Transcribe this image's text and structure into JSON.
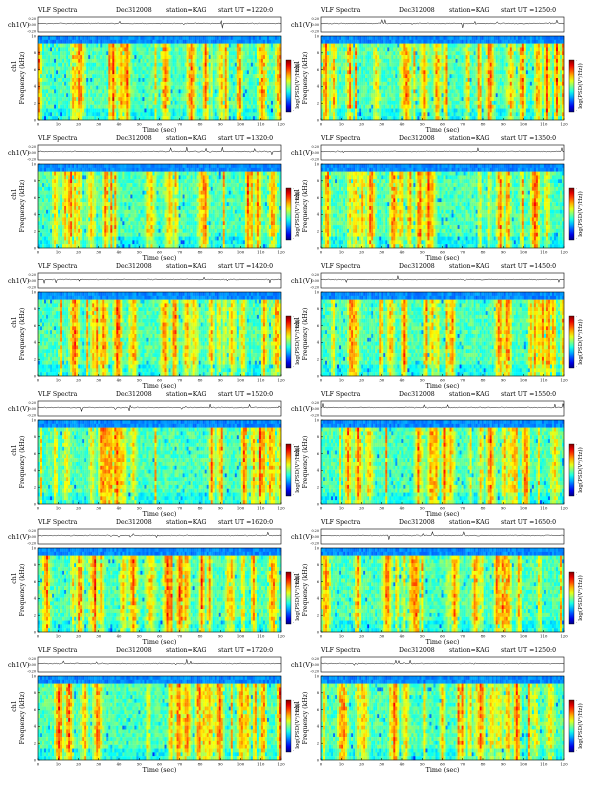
{
  "common": {
    "header_title": "VLF Spectra",
    "date": "Dec312008",
    "station": "station=KAG",
    "start_prefix": "start  UT  =",
    "wave_label": "ch1(V)",
    "wave_ticks": [
      "0.20",
      "0.00",
      "-0.20"
    ],
    "spec_label_line1": "ch1",
    "spec_label_line2": "Frequency  (kHz)",
    "freq_ticks": [
      "0",
      "2",
      "4",
      "6",
      "8",
      "10"
    ],
    "time_ticks": [
      "0",
      "10",
      "20",
      "30",
      "40",
      "50",
      "60",
      "70",
      "80",
      "90",
      "100",
      "110",
      "120"
    ],
    "time_label": "Time  (sec)",
    "colorbar_label": "log(PSD(V²/Hz))",
    "colorbar_ticks": [
      "-",
      "-"
    ]
  },
  "chart_data": [
    {
      "type": "heatmap",
      "title": "VLF Spectra",
      "start_ut": "1220:0",
      "xlabel": "Time (sec)",
      "ylabel": "Frequency (kHz)",
      "xlim": [
        0,
        120
      ],
      "ylim": [
        0,
        10
      ],
      "colormap": "jet",
      "top_panel": "ch1(V)"
    },
    {
      "type": "heatmap",
      "title": "VLF Spectra",
      "start_ut": "1250:0",
      "xlabel": "Time (sec)",
      "ylabel": "Frequency (kHz)",
      "xlim": [
        0,
        120
      ],
      "ylim": [
        0,
        10
      ],
      "colormap": "jet",
      "top_panel": "ch1(V)"
    },
    {
      "type": "heatmap",
      "title": "VLF Spectra",
      "start_ut": "1320:0",
      "xlabel": "Time (sec)",
      "ylabel": "Frequency (kHz)",
      "xlim": [
        0,
        120
      ],
      "ylim": [
        0,
        10
      ],
      "colormap": "jet",
      "top_panel": "ch1(V)"
    },
    {
      "type": "heatmap",
      "title": "VLF Spectra",
      "start_ut": "1350:0",
      "xlabel": "Time (sec)",
      "ylabel": "Frequency (kHz)",
      "xlim": [
        0,
        120
      ],
      "ylim": [
        0,
        10
      ],
      "colormap": "jet",
      "top_panel": "ch1(V)"
    },
    {
      "type": "heatmap",
      "title": "VLF Spectra",
      "start_ut": "1420:0",
      "xlabel": "Time (sec)",
      "ylabel": "Frequency (kHz)",
      "xlim": [
        0,
        120
      ],
      "ylim": [
        0,
        10
      ],
      "colormap": "jet",
      "top_panel": "ch1(V)"
    },
    {
      "type": "heatmap",
      "title": "VLF Spectra",
      "start_ut": "1450:0",
      "xlabel": "Time (sec)",
      "ylabel": "Frequency (kHz)",
      "xlim": [
        0,
        120
      ],
      "ylim": [
        0,
        10
      ],
      "colormap": "jet",
      "top_panel": "ch1(V)"
    },
    {
      "type": "heatmap",
      "title": "VLF Spectra",
      "start_ut": "1520:0",
      "xlabel": "Time (sec)",
      "ylabel": "Frequency (kHz)",
      "xlim": [
        0,
        120
      ],
      "ylim": [
        0,
        10
      ],
      "colormap": "jet",
      "top_panel": "ch1(V)"
    },
    {
      "type": "heatmap",
      "title": "VLF Spectra",
      "start_ut": "1550:0",
      "xlabel": "Time (sec)",
      "ylabel": "Frequency (kHz)",
      "xlim": [
        0,
        120
      ],
      "ylim": [
        0,
        10
      ],
      "colormap": "jet",
      "top_panel": "ch1(V)"
    },
    {
      "type": "heatmap",
      "title": "VLF Spectra",
      "start_ut": "1620:0",
      "xlabel": "Time (sec)",
      "ylabel": "Frequency (kHz)",
      "xlim": [
        0,
        120
      ],
      "ylim": [
        0,
        10
      ],
      "colormap": "jet",
      "top_panel": "ch1(V)"
    },
    {
      "type": "heatmap",
      "title": "VLF Spectra",
      "start_ut": "1650:0",
      "xlabel": "Time (sec)",
      "ylabel": "Frequency (kHz)",
      "xlim": [
        0,
        120
      ],
      "ylim": [
        0,
        10
      ],
      "colormap": "jet",
      "top_panel": "ch1(V)"
    },
    {
      "type": "heatmap",
      "title": "VLF Spectra",
      "start_ut": "1720:0",
      "xlabel": "Time (sec)",
      "ylabel": "Frequency (kHz)",
      "xlim": [
        0,
        120
      ],
      "ylim": [
        0,
        10
      ],
      "colormap": "jet",
      "top_panel": "ch1(V)"
    },
    {
      "type": "heatmap",
      "title": "VLF Spectra",
      "start_ut": "1250:0",
      "xlabel": "Time (sec)",
      "ylabel": "Frequency (kHz)",
      "xlim": [
        0,
        120
      ],
      "ylim": [
        0,
        10
      ],
      "colormap": "jet",
      "top_panel": "ch1(V)"
    }
  ]
}
